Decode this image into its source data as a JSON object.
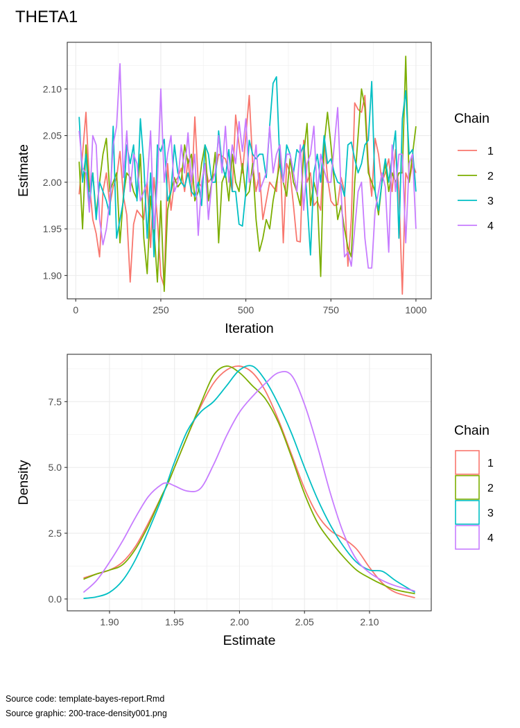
{
  "figure_title": "THETA1",
  "footer": {
    "source_code": "Source code: template-bayes-report.Rmd",
    "source_graphic": "Source graphic: 200-trace-density001.png"
  },
  "chart_data": [
    {
      "type": "line",
      "xlabel": "Iteration",
      "ylabel": "Estimate",
      "xlim": [
        -25,
        1045
      ],
      "ylim": [
        1.875,
        2.15
      ],
      "xticks": [
        0,
        250,
        500,
        750,
        1000
      ],
      "xtick_labels": [
        "0",
        "250",
        "500",
        "750",
        "1000"
      ],
      "yticks": [
        1.9,
        1.95,
        2.0,
        2.05,
        2.1
      ],
      "ytick_labels": [
        "1.90",
        "1.95",
        "2.00",
        "2.05",
        "2.10"
      ],
      "grid": true,
      "legend": {
        "title": "Chain",
        "position": "right"
      },
      "x": [
        10,
        20,
        30,
        40,
        50,
        60,
        70,
        80,
        90,
        100,
        110,
        120,
        130,
        140,
        150,
        160,
        170,
        180,
        190,
        200,
        210,
        220,
        230,
        240,
        250,
        260,
        270,
        280,
        290,
        300,
        310,
        320,
        330,
        340,
        350,
        360,
        370,
        380,
        390,
        400,
        410,
        420,
        430,
        440,
        450,
        460,
        470,
        480,
        490,
        500,
        510,
        520,
        530,
        540,
        550,
        560,
        570,
        580,
        590,
        600,
        610,
        620,
        630,
        640,
        650,
        660,
        670,
        680,
        690,
        700,
        710,
        720,
        730,
        740,
        750,
        760,
        770,
        780,
        790,
        800,
        810,
        820,
        830,
        840,
        850,
        860,
        870,
        880,
        890,
        900,
        910,
        920,
        930,
        940,
        950,
        960,
        970,
        980,
        990,
        1000
      ],
      "series": [
        {
          "name": "1",
          "color": "#F8766D",
          "values": [
            1.987,
            2.03,
            2.075,
            2.0,
            1.96,
            1.945,
            1.92,
            1.99,
            2.01,
            1.975,
            1.995,
            2.005,
            2.033,
            1.985,
            1.965,
            1.893,
            1.955,
            1.97,
            1.965,
            1.96,
            2.0,
            1.93,
            2.005,
            1.96,
            1.9,
            1.888,
            2.02,
            1.97,
            2.0,
            2.005,
            2.015,
            1.99,
            2.025,
            1.985,
            2.07,
            2.0,
            1.995,
            2.02,
            2.0,
            2.005,
            2.01,
            2.03,
            2.028,
            2.025,
            2.01,
            1.99,
            2.072,
            2.04,
            2.01,
            2.05,
            2.093,
            2.02,
            1.99,
            2.01,
            1.96,
            1.98,
            2.0,
            1.995,
            1.99,
            2.04,
            1.935,
            2.02,
            2.01,
            1.975,
            1.937,
            1.936,
            2.045,
            2.0,
            2.01,
            1.975,
            1.98,
            1.97,
            2.047,
            2.005,
            1.98,
            1.975,
            1.976,
            2.005,
            1.99,
            1.91,
            1.96,
            2.085,
            2.078,
            2.075,
            2.093,
            2.02,
            1.985,
            2.047,
            2.03,
            2.0,
            2.01,
            2.025,
            1.99,
            2.035,
            1.99,
            1.88,
            2.01,
            2.0,
            2.02,
            2.01
          ]
        },
        {
          "name": "2",
          "color": "#7CAE00",
          "values": [
            2.022,
            1.95,
            2.04,
            1.99,
            2.01,
            1.965,
            2.0,
            2.03,
            2.047,
            1.99,
            2.0,
            2.01,
            1.935,
            1.985,
            2.01,
            2.005,
            1.99,
            1.982,
            2.03,
            1.94,
            1.902,
            1.985,
            1.95,
            1.893,
            1.98,
            1.883,
            1.97,
            1.99,
            2.005,
            1.995,
            2.0,
            2.04,
            2.02,
            2.03,
            1.98,
            1.99,
            2.02,
            2.04,
            1.98,
            2.0,
            2.032,
            1.935,
            2.0,
            2.01,
            1.98,
            2.03,
            2.0,
            1.99,
            2.02,
            1.985,
            1.99,
            2.02,
            1.96,
            1.926,
            1.94,
            1.96,
            1.95,
            1.98,
            2.0,
            2.02,
            2.0,
            1.985,
            2.025,
            2.0,
            1.99,
            1.975,
            2.03,
            2.063,
            1.975,
            2.0,
            1.985,
            1.899,
            2.04,
            2.075,
            2.04,
            2.0,
            1.96,
            1.975,
            1.95,
            1.93,
            1.92,
            2.0,
            2.05,
            2.1,
            2.08,
            2.01,
            2.0,
            1.99,
            1.965,
            2.0,
            2.02,
            1.99,
            2.01,
            2.0,
            2.01,
            2.01,
            2.135,
            2.0,
            2.03,
            2.06
          ]
        },
        {
          "name": "3",
          "color": "#00BFC4",
          "values": [
            2.07,
            2.0,
            2.03,
            1.975,
            2.01,
            1.96,
            2.0,
            1.99,
            1.98,
            1.965,
            2.06,
            1.94,
            1.96,
            1.98,
            2.04,
            2.02,
            2.04,
            1.98,
            2.068,
            2.02,
            1.94,
            2.01,
            1.92,
            2.04,
            2.033,
            2.046,
            1.98,
            1.99,
            2.04,
            2.01,
            2.0,
            1.995,
            2.01,
            1.99,
            1.985,
            2.0,
            1.975,
            2.04,
            2.03,
            2.0,
            2.0,
            2.055,
            2.02,
            2.005,
            2.035,
            1.99,
            1.99,
            1.955,
            1.953,
            1.99,
            2.045,
            2.03,
            2.025,
            2.03,
            2.03,
            2.005,
            2.06,
            2.106,
            2.113,
            2.02,
            2.0,
            2.04,
            2.03,
            2.01,
            2.035,
            2.03,
            2.04,
            1.98,
            1.922,
            2.01,
            2.03,
            2.0,
            2.05,
            2.02,
            2.025,
            2.01,
            2.0,
            1.998,
            1.985,
            2.04,
            2.043,
            2.025,
            2.01,
            2.02,
            2.04,
            2.045,
            2.108,
            1.99,
            1.97,
            2.0,
            2.025,
            2.0,
            2.028,
            2.055,
            1.94,
            2.068,
            2.098,
            2.03,
            2.035,
            1.99
          ]
        },
        {
          "name": "4",
          "color": "#C77CFF",
          "values": [
            2.055,
            2.015,
            2.01,
            1.968,
            2.05,
            2.04,
            1.96,
            1.933,
            1.95,
            1.98,
            2.04,
            2.06,
            2.127,
            2.005,
            2.055,
            1.99,
            2.03,
            2.02,
            1.98,
            1.99,
            2.0,
            2.055,
            1.95,
            2.0,
            2.1,
            2.0,
            2.03,
            2.05,
            1.99,
            2.0,
            2.04,
            2.01,
            2.053,
            2.0,
            2.03,
            1.943,
            2.0,
            2.02,
            1.96,
            2.0,
            2.01,
            2.05,
            2.01,
            2.06,
            2.0,
            2.04,
            2.02,
            2.065,
            2.033,
            2.068,
            2.0,
            2.01,
            2.04,
            1.99,
            2.0,
            2.01,
            2.06,
            2.01,
            2.03,
            2.04,
            2.0,
            2.03,
            2.03,
            2.01,
            1.99,
            2.04,
            1.97,
            2.02,
            2.03,
            2.06,
            1.985,
            2.03,
            2.013,
            2.0,
            2.0,
            2.04,
            2.08,
            1.99,
            1.92,
            1.925,
            1.91,
            1.95,
            1.99,
            2.0,
            1.94,
            1.908,
            1.908,
            1.97,
            1.99,
            2.01,
            1.995,
            1.925,
            2.04,
            1.99,
            2.03,
            2.03,
            1.935,
            2.02,
            2.03,
            1.95
          ]
        }
      ]
    },
    {
      "type": "line",
      "subtype": "density",
      "xlabel": "Estimate",
      "ylabel": "Density",
      "xlim": [
        1.8675,
        2.1475
      ],
      "ylim": [
        -0.45,
        9.3
      ],
      "xticks": [
        1.9,
        1.95,
        2.0,
        2.05,
        2.1
      ],
      "xtick_labels": [
        "1.90",
        "1.95",
        "2.00",
        "2.05",
        "2.10"
      ],
      "yticks": [
        0.0,
        2.5,
        5.0,
        7.5
      ],
      "ytick_labels": [
        "0.0",
        "2.5",
        "5.0",
        "7.5"
      ],
      "grid": true,
      "legend": {
        "title": "Chain",
        "position": "right"
      },
      "x": [
        1.88,
        1.89,
        1.9,
        1.91,
        1.92,
        1.93,
        1.94,
        1.945,
        1.95,
        1.96,
        1.97,
        1.98,
        1.99,
        2.0,
        2.01,
        2.02,
        2.03,
        2.04,
        2.05,
        2.06,
        2.07,
        2.08,
        2.09,
        2.1,
        2.11,
        2.12,
        2.135
      ],
      "series": [
        {
          "name": "1",
          "color": "#F8766D",
          "values": [
            0.8,
            0.95,
            1.1,
            1.4,
            2.0,
            2.9,
            3.9,
            4.4,
            5.0,
            6.2,
            7.3,
            8.2,
            8.7,
            8.85,
            8.6,
            7.9,
            6.8,
            5.5,
            4.2,
            3.2,
            2.6,
            2.3,
            1.9,
            1.2,
            0.6,
            0.25,
            0.05
          ]
        },
        {
          "name": "2",
          "color": "#7CAE00",
          "values": [
            0.75,
            0.95,
            1.1,
            1.3,
            1.9,
            2.8,
            3.9,
            4.4,
            5.0,
            6.2,
            7.4,
            8.5,
            8.85,
            8.6,
            8.1,
            7.6,
            6.7,
            5.4,
            4.0,
            2.9,
            2.2,
            1.6,
            1.1,
            0.8,
            0.55,
            0.35,
            0.2
          ]
        },
        {
          "name": "3",
          "color": "#00BFC4",
          "values": [
            0.02,
            0.08,
            0.25,
            0.7,
            1.5,
            2.6,
            3.8,
            4.5,
            5.2,
            6.4,
            7.1,
            7.5,
            8.1,
            8.7,
            8.85,
            8.3,
            7.4,
            6.3,
            5.0,
            3.8,
            2.8,
            2.0,
            1.4,
            1.1,
            1.05,
            0.7,
            0.25
          ]
        },
        {
          "name": "4",
          "color": "#C77CFF",
          "values": [
            0.25,
            0.7,
            1.4,
            2.2,
            3.1,
            3.9,
            4.35,
            4.4,
            4.3,
            4.1,
            4.2,
            5.1,
            6.2,
            7.1,
            7.7,
            8.2,
            8.6,
            8.5,
            7.4,
            5.8,
            4.0,
            2.5,
            1.5,
            1.0,
            0.7,
            0.5,
            0.3
          ]
        }
      ]
    }
  ]
}
